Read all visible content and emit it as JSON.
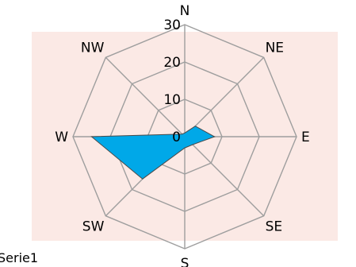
{
  "chart_data": {
    "type": "radar",
    "directions": [
      "N",
      "NE",
      "E",
      "SE",
      "S",
      "SW",
      "W",
      "NW"
    ],
    "rlim": [
      0,
      30
    ],
    "ticks": [
      0,
      10,
      20,
      30
    ],
    "series": [
      {
        "name": "Serie1",
        "values": [
          1,
          4,
          8,
          3,
          3,
          16,
          25,
          1
        ],
        "color": "#00a8e8"
      }
    ],
    "grid": true,
    "plot_background": "#fbe9e5",
    "legend_position": "bottom-left"
  }
}
